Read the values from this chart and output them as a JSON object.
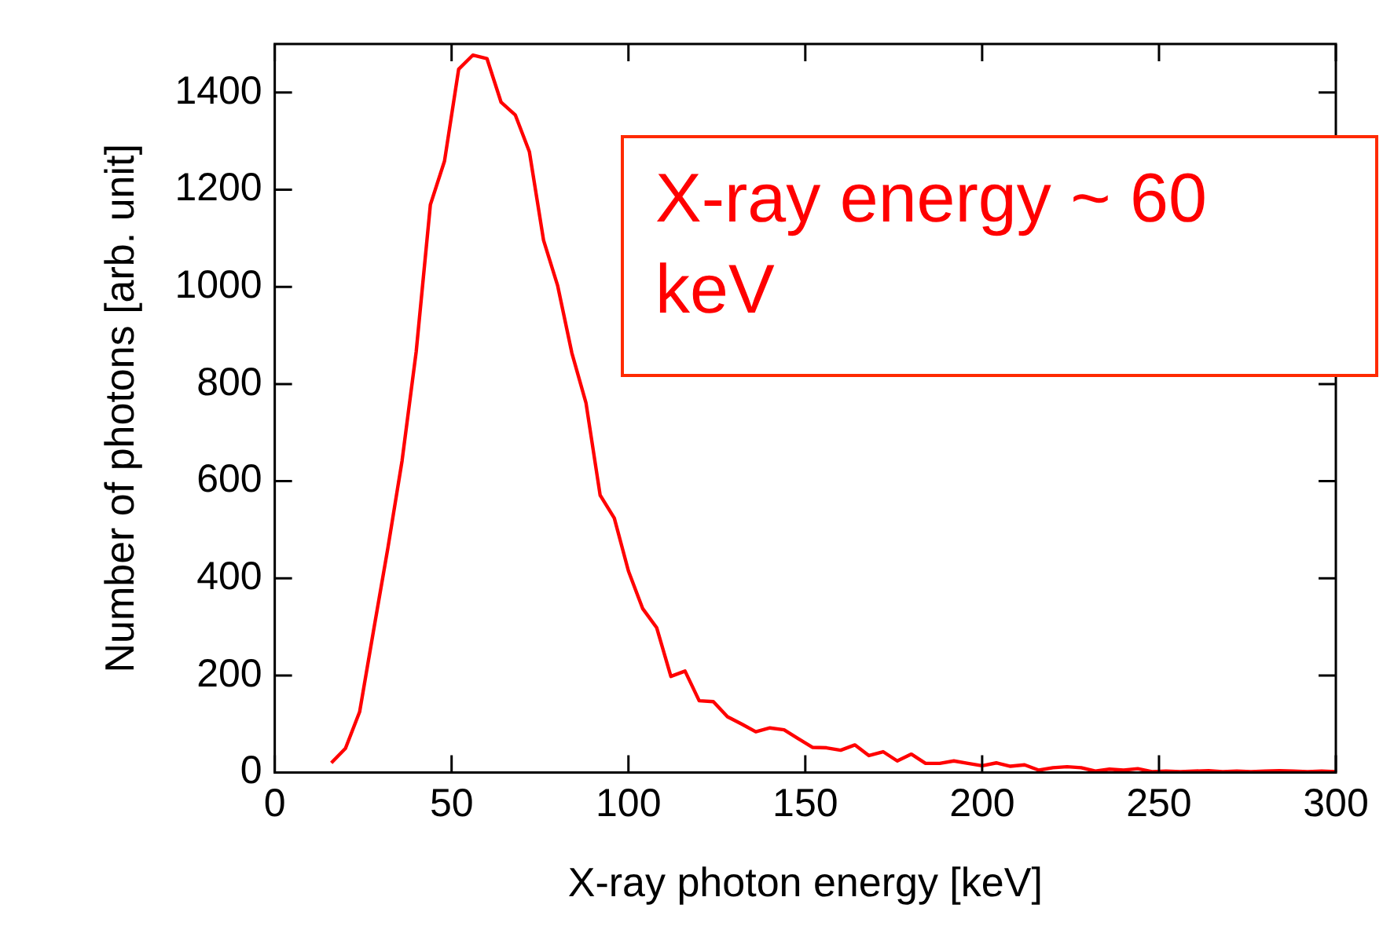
{
  "chart_data": {
    "type": "line",
    "xlabel": "X-ray photon energy [keV]",
    "ylabel": "Number of photons [arb. unit]",
    "annotations": [
      "X-ray energy ~ 60 keV"
    ],
    "xlim": [
      0,
      300
    ],
    "xticks": [
      0,
      50,
      100,
      150,
      200,
      250,
      300
    ],
    "ylim": [
      0,
      1500
    ],
    "yticks": [
      0,
      200,
      400,
      600,
      800,
      1000,
      1200,
      1400
    ],
    "grid": false,
    "legend": false,
    "marker": "none",
    "line_style": "solid",
    "series": [
      {
        "color": "#ff0000",
        "x": [
          16,
          20,
          24,
          28,
          32,
          36,
          40,
          44,
          48,
          52,
          56,
          60,
          64,
          68,
          72,
          76,
          80,
          84,
          88,
          92,
          96,
          100,
          104,
          108,
          112,
          116,
          120,
          124,
          128,
          132,
          136,
          140,
          144,
          148,
          152,
          156,
          160,
          164,
          168,
          172,
          176,
          180,
          184,
          188,
          192,
          196,
          200,
          204,
          208,
          212,
          216,
          220,
          224,
          228,
          232,
          236,
          240,
          244,
          248,
          252,
          256,
          260,
          264,
          268,
          272,
          276,
          280,
          284,
          288,
          292,
          296,
          300
        ],
        "values": [
          20,
          50,
          125,
          295,
          463,
          642,
          867,
          1169,
          1259,
          1448,
          1477,
          1470,
          1380,
          1354,
          1278,
          1096,
          1002,
          864,
          761,
          571,
          524,
          415,
          338,
          298,
          198,
          209,
          148,
          146,
          115,
          100,
          84,
          92,
          88,
          70,
          52,
          51,
          46,
          57,
          35,
          43,
          24,
          38,
          19,
          19,
          24,
          19,
          14,
          20,
          13,
          16,
          5,
          10,
          12,
          10,
          3,
          7,
          5,
          8,
          2,
          3,
          2,
          3,
          4,
          2,
          3,
          2,
          3,
          4,
          3,
          2,
          3,
          2
        ]
      }
    ]
  }
}
